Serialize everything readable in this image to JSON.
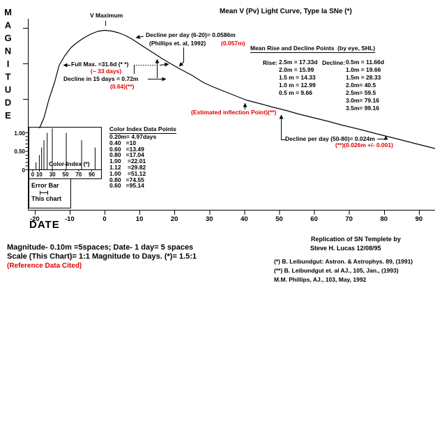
{
  "colors": {
    "red": "#e00000",
    "ink": "#000000",
    "background": "#ffffff"
  },
  "title": "Mean V (Pv) Light Curve, Type Ia SNe (*)",
  "y_axis_label": "MAGNITUDE",
  "x_axis_label": "DATE",
  "annotations": {
    "v_maximum": "V Maximum",
    "decline_6_20": "Decline per day (6-20)= 0.0586m",
    "phillips": "(Phillips et. al, 1992)",
    "phillips_alt": "(0.057m)",
    "full_max": "Full Max. =31.6d (* *)",
    "full_max_alt": "(~ 33 days)",
    "decline_15": "Decline in 15 days = 0.72m",
    "decline_15_alt": "(0.64)(**)",
    "inflection": "(Estimated inflection Point)(**)",
    "decline_50_80": "Decline per day (50-80)= 0.024m",
    "decline_50_80_alt": "(**)(0.026m +/- 0.001)"
  },
  "rise_decline_table": {
    "title": "Mean Rise and Decline Points  (by eye, SHL)",
    "rise_label": "Rise:",
    "decline_label": "Decline:",
    "rise_rows": [
      "2.5m = 17.33d",
      "2.0m = 15.99",
      "1.5 m = 14.33",
      "1.0 m = 12.99",
      "0.5 m = 9.66"
    ],
    "decline_rows": [
      "0.5m = 11.66d",
      "1.0m = 19.66",
      "1.5m = 28.33",
      "2.0m= 40.5",
      "2.5m= 59.5",
      "3.0m= 79.16",
      "3.5m= 99.16"
    ]
  },
  "color_index": {
    "title": "Color Index Data Points",
    "rows": [
      "0.20m= 4.97days",
      "0.40   =10",
      "0.60   =13.49",
      "0.80   =17.04",
      "1.00    =22.01",
      "1.12    =29.82",
      "1.00    =51.12",
      "0.80   =74.55",
      "0.60   =95.14"
    ],
    "inset_label": "Color-Index (*)",
    "error_box_line1": "Error Bar",
    "error_box_line2": "This chart"
  },
  "footer": {
    "note1": "Magnitude- 0.10m =5spaces; Date- 1 day= 5 spaces",
    "note2": "Scale (This Chart)= 1:1 Magnitude to Days. (*)= 1.5:1",
    "note3": "(Reference Data Cited)",
    "credit1": "Replication of SN Templete by",
    "credit2": "Steve H. Lucas 12/08/95",
    "refs": [
      "(*) B. Leibundgut: Astron. & Astrophys. 89, (1991)",
      "(**) B. Leibundgut et. al AJ., 105, Jan., (1993)",
      "M.M. Phillips, AJ., 103, May, 1992"
    ]
  },
  "chart_data": [
    {
      "type": "line",
      "title": "Mean V (Pv) Light Curve, Type Ia SNe (*)",
      "xlabel": "DATE",
      "ylabel": "MAGNITUDE (0.10m = 5 spaces, increasing downward from V maximum)",
      "x_ticks": [
        -20,
        -10,
        0,
        10,
        20,
        30,
        40,
        50,
        60,
        70,
        80,
        90
      ],
      "x_range": [
        -22,
        95
      ],
      "grid": false,
      "scale_note": "1:1 magnitude to days",
      "points_day_mag": [
        [
          -18.6,
          2.8
        ],
        [
          -17.33,
          2.5
        ],
        [
          -15.99,
          2.0
        ],
        [
          -14.33,
          1.5
        ],
        [
          -12.99,
          1.0
        ],
        [
          -11.4,
          0.73
        ],
        [
          -9.66,
          0.5
        ],
        [
          -8,
          0.36
        ],
        [
          -6,
          0.22
        ],
        [
          -4,
          0.11
        ],
        [
          -2,
          0.03
        ],
        [
          0,
          0
        ],
        [
          2,
          0.02
        ],
        [
          4,
          0.07
        ],
        [
          6,
          0.15
        ],
        [
          8,
          0.26
        ],
        [
          9.8,
          0.38
        ],
        [
          11.66,
          0.5
        ],
        [
          14,
          0.65
        ],
        [
          16.6,
          0.82
        ],
        [
          19.66,
          1.0
        ],
        [
          22,
          1.13
        ],
        [
          25,
          1.29
        ],
        [
          28.33,
          1.5
        ],
        [
          31,
          1.62
        ],
        [
          34,
          1.74
        ],
        [
          37,
          1.86
        ],
        [
          40.5,
          2.0
        ],
        [
          44,
          2.09
        ],
        [
          48,
          2.2
        ],
        [
          52,
          2.3
        ],
        [
          55.5,
          2.4
        ],
        [
          59.5,
          2.5
        ],
        [
          64,
          2.61
        ],
        [
          68,
          2.72
        ],
        [
          73,
          2.84
        ],
        [
          79.16,
          3.0
        ],
        [
          84,
          3.12
        ],
        [
          89,
          3.25
        ],
        [
          94.6,
          3.39
        ]
      ]
    },
    {
      "type": "bar",
      "title": "Color-Index (*)",
      "x_ticks": [
        0,
        10,
        30,
        50,
        70,
        90
      ],
      "y_tick_labels": [
        "1.00",
        "0.50",
        "0"
      ],
      "points_day_value": [
        [
          4.97,
          0.2
        ],
        [
          10,
          0.4
        ],
        [
          13.49,
          0.6
        ],
        [
          17.04,
          0.8
        ],
        [
          22.01,
          1.0
        ],
        [
          29.82,
          1.12
        ],
        [
          51.12,
          1.0
        ],
        [
          74.55,
          0.8
        ],
        [
          95.14,
          0.6
        ]
      ]
    }
  ]
}
